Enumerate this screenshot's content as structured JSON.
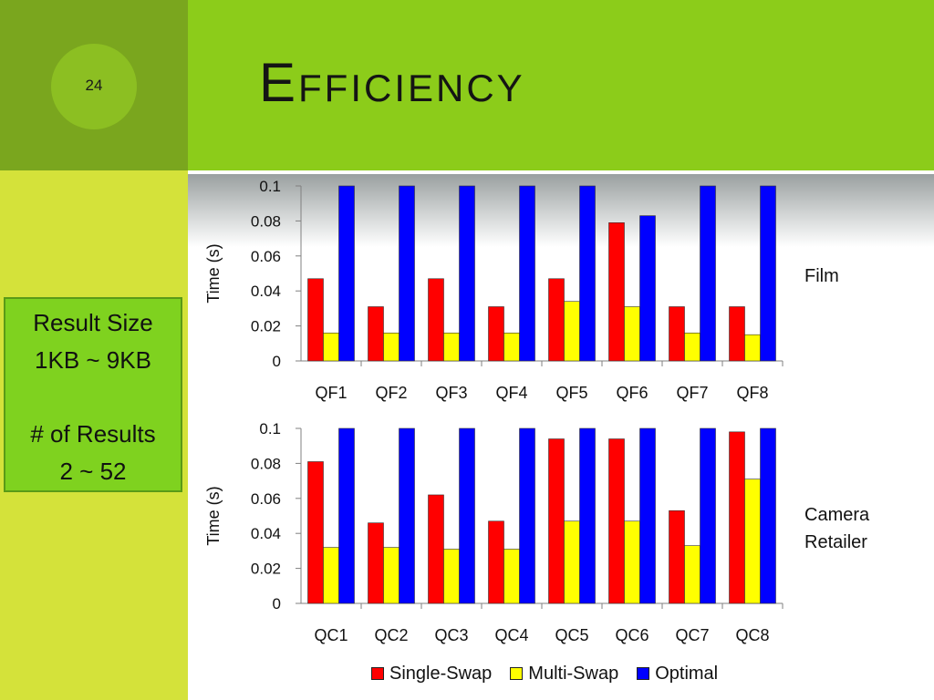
{
  "slide": {
    "number": "24",
    "title": "Efficiency"
  },
  "side_box": {
    "line1": "Result Size",
    "line2": "1KB ~ 9KB",
    "line3": "# of Results",
    "line4": "2 ~ 52"
  },
  "labels": {
    "film": "Film",
    "camera_line1": "Camera",
    "camera_line2": "Retailer"
  },
  "colors": {
    "single_swap": "#ff0000",
    "multi_swap": "#ffff00",
    "optimal": "#0000ff"
  },
  "legend": [
    "Single-Swap",
    "Multi-Swap",
    "Optimal"
  ],
  "chart_data": [
    {
      "type": "bar",
      "categories": [
        "QF1",
        "QF2",
        "QF3",
        "QF4",
        "QF5",
        "QF6",
        "QF7",
        "QF8"
      ],
      "ylabel": "Time (s)",
      "ylim": [
        0,
        0.1
      ],
      "yticks": [
        "0",
        "0.02",
        "0.04",
        "0.06",
        "0.08",
        "0.1"
      ],
      "grid": false,
      "series": [
        {
          "name": "Single-Swap",
          "values": [
            0.047,
            0.031,
            0.047,
            0.031,
            0.047,
            0.079,
            0.031,
            0.031
          ]
        },
        {
          "name": "Multi-Swap",
          "values": [
            0.016,
            0.016,
            0.016,
            0.016,
            0.034,
            0.031,
            0.016,
            0.015
          ]
        },
        {
          "name": "Optimal",
          "values": [
            0.1,
            0.1,
            0.1,
            0.1,
            0.1,
            0.083,
            0.1,
            0.1
          ]
        }
      ]
    },
    {
      "type": "bar",
      "categories": [
        "QC1",
        "QC2",
        "QC3",
        "QC4",
        "QC5",
        "QC6",
        "QC7",
        "QC8"
      ],
      "ylabel": "Time (s)",
      "ylim": [
        0,
        0.1
      ],
      "yticks": [
        "0",
        "0.02",
        "0.04",
        "0.06",
        "0.08",
        "0.1"
      ],
      "grid": false,
      "legend": "bottom",
      "series": [
        {
          "name": "Single-Swap",
          "values": [
            0.081,
            0.046,
            0.062,
            0.047,
            0.094,
            0.094,
            0.053,
            0.098
          ]
        },
        {
          "name": "Multi-Swap",
          "values": [
            0.032,
            0.032,
            0.031,
            0.031,
            0.047,
            0.047,
            0.033,
            0.071
          ]
        },
        {
          "name": "Optimal",
          "values": [
            0.1,
            0.1,
            0.1,
            0.1,
            0.1,
            0.1,
            0.1,
            0.1
          ]
        }
      ]
    }
  ]
}
